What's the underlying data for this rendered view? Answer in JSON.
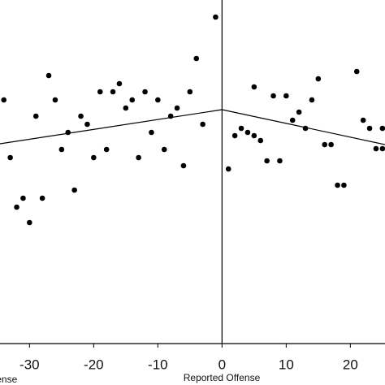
{
  "chart_data": {
    "type": "scatter",
    "x_label": "Reported Offense",
    "xlim": [
      -34.6,
      25.4
    ],
    "ylim": [
      0,
      423
    ],
    "xticks": [
      -30,
      -20,
      -10,
      0,
      10,
      20
    ],
    "cutoff": 0,
    "color": "#000000",
    "x": [
      -34,
      -33,
      -32,
      -31,
      -30,
      -29,
      -28,
      -27,
      -26,
      -25,
      -24,
      -23,
      -22,
      -21,
      -20,
      -19,
      -18,
      -17,
      -16,
      -15,
      -14,
      -13,
      -12,
      -11,
      -10,
      -9,
      -8,
      -7,
      -6,
      -5,
      -4,
      -3,
      -1,
      1,
      2,
      3,
      4,
      5,
      5,
      6,
      7,
      8,
      9,
      10,
      11,
      12,
      13,
      14,
      15,
      16,
      17,
      18,
      19,
      21,
      22,
      23,
      24,
      25,
      25
    ],
    "values": [
      300,
      229,
      168,
      179,
      149,
      280,
      179,
      330,
      300,
      239,
      260,
      189,
      280,
      270,
      229,
      310,
      239,
      310,
      320,
      290,
      300,
      229,
      310,
      260,
      300,
      239,
      280,
      290,
      219,
      310,
      351,
      270,
      402,
      215,
      256,
      265,
      260,
      316,
      256,
      250,
      225,
      305,
      225,
      305,
      275,
      285,
      265,
      300,
      326,
      245,
      245,
      195,
      195,
      335,
      275,
      265,
      240,
      265,
      240
    ],
    "fit_lines": [
      {
        "x": [
          -34.6,
          0
        ],
        "y": [
          246,
          288
        ]
      },
      {
        "x": [
          0,
          25.4
        ],
        "y": [
          288,
          245
        ]
      }
    ]
  }
}
